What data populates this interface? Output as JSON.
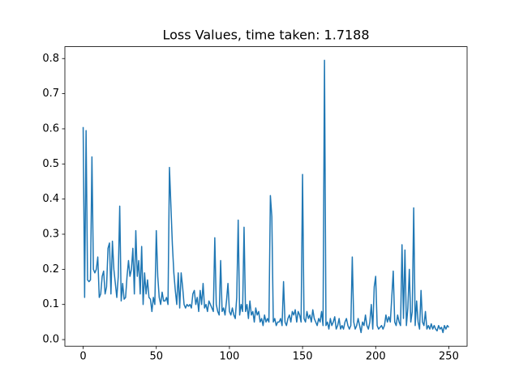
{
  "chart_data": {
    "type": "line",
    "title": "Loss Values, time taken: 1.7188",
    "color": "#1f77b4",
    "x": [
      0,
      1,
      2,
      3,
      4,
      5,
      6,
      7,
      8,
      9,
      10,
      11,
      12,
      13,
      14,
      15,
      16,
      17,
      18,
      19,
      20,
      21,
      22,
      23,
      24,
      25,
      26,
      27,
      28,
      29,
      30,
      31,
      32,
      33,
      34,
      35,
      36,
      37,
      38,
      39,
      40,
      41,
      42,
      43,
      44,
      45,
      46,
      47,
      48,
      49,
      50,
      51,
      52,
      53,
      54,
      55,
      56,
      57,
      58,
      59,
      60,
      61,
      62,
      63,
      64,
      65,
      66,
      67,
      68,
      69,
      70,
      71,
      72,
      73,
      74,
      75,
      76,
      77,
      78,
      79,
      80,
      81,
      82,
      83,
      84,
      85,
      86,
      87,
      88,
      89,
      90,
      91,
      92,
      93,
      94,
      95,
      96,
      97,
      98,
      99,
      100,
      101,
      102,
      103,
      104,
      105,
      106,
      107,
      108,
      109,
      110,
      111,
      112,
      113,
      114,
      115,
      116,
      117,
      118,
      119,
      120,
      121,
      122,
      123,
      124,
      125,
      126,
      127,
      128,
      129,
      130,
      131,
      132,
      133,
      134,
      135,
      136,
      137,
      138,
      139,
      140,
      141,
      142,
      143,
      144,
      145,
      146,
      147,
      148,
      149,
      150,
      151,
      152,
      153,
      154,
      155,
      156,
      157,
      158,
      159,
      160,
      161,
      162,
      163,
      164,
      165,
      166,
      167,
      168,
      169,
      170,
      171,
      172,
      173,
      174,
      175,
      176,
      177,
      178,
      179,
      180,
      181,
      182,
      183,
      184,
      185,
      186,
      187,
      188,
      189,
      190,
      191,
      192,
      193,
      194,
      195,
      196,
      197,
      198,
      199,
      200,
      201,
      202,
      203,
      204,
      205,
      206,
      207,
      208,
      209,
      210,
      211,
      212,
      213,
      214,
      215,
      216,
      217,
      218,
      219,
      220,
      221,
      222,
      223,
      224,
      225,
      226,
      227,
      228,
      229,
      230,
      231,
      232,
      233,
      234,
      235,
      236,
      237,
      238,
      239,
      240,
      241,
      242,
      243,
      244,
      245,
      246,
      247,
      248,
      249,
      250
    ],
    "values": [
      0.605,
      0.12,
      0.595,
      0.17,
      0.165,
      0.17,
      0.52,
      0.2,
      0.19,
      0.2,
      0.235,
      0.12,
      0.13,
      0.18,
      0.195,
      0.13,
      0.15,
      0.26,
      0.275,
      0.13,
      0.28,
      0.2,
      0.16,
      0.12,
      0.18,
      0.38,
      0.11,
      0.16,
      0.115,
      0.12,
      0.18,
      0.225,
      0.18,
      0.2,
      0.26,
      0.13,
      0.31,
      0.18,
      0.225,
      0.13,
      0.265,
      0.1,
      0.19,
      0.13,
      0.17,
      0.12,
      0.115,
      0.08,
      0.12,
      0.1,
      0.31,
      0.18,
      0.12,
      0.1,
      0.135,
      0.11,
      0.11,
      0.12,
      0.1,
      0.49,
      0.38,
      0.27,
      0.19,
      0.14,
      0.1,
      0.19,
      0.09,
      0.19,
      0.15,
      0.1,
      0.09,
      0.1,
      0.095,
      0.1,
      0.09,
      0.13,
      0.14,
      0.1,
      0.12,
      0.08,
      0.14,
      0.1,
      0.16,
      0.09,
      0.1,
      0.08,
      0.11,
      0.1,
      0.09,
      0.08,
      0.29,
      0.1,
      0.08,
      0.07,
      0.225,
      0.08,
      0.09,
      0.07,
      0.11,
      0.16,
      0.08,
      0.07,
      0.09,
      0.07,
      0.06,
      0.12,
      0.34,
      0.07,
      0.1,
      0.08,
      0.32,
      0.08,
      0.1,
      0.06,
      0.11,
      0.07,
      0.08,
      0.05,
      0.09,
      0.07,
      0.08,
      0.05,
      0.06,
      0.04,
      0.07,
      0.05,
      0.06,
      0.05,
      0.41,
      0.35,
      0.05,
      0.06,
      0.04,
      0.05,
      0.05,
      0.06,
      0.04,
      0.165,
      0.05,
      0.04,
      0.06,
      0.07,
      0.05,
      0.08,
      0.07,
      0.085,
      0.05,
      0.08,
      0.07,
      0.05,
      0.47,
      0.06,
      0.05,
      0.08,
      0.06,
      0.07,
      0.05,
      0.085,
      0.06,
      0.05,
      0.04,
      0.06,
      0.05,
      0.08,
      0.04,
      0.795,
      0.04,
      0.05,
      0.03,
      0.06,
      0.04,
      0.05,
      0.065,
      0.03,
      0.04,
      0.06,
      0.03,
      0.04,
      0.03,
      0.05,
      0.06,
      0.04,
      0.03,
      0.04,
      0.235,
      0.05,
      0.03,
      0.04,
      0.06,
      0.04,
      0.02,
      0.05,
      0.04,
      0.07,
      0.04,
      0.03,
      0.05,
      0.1,
      0.03,
      0.15,
      0.18,
      0.04,
      0.03,
      0.035,
      0.04,
      0.03,
      0.04,
      0.07,
      0.05,
      0.065,
      0.05,
      0.12,
      0.195,
      0.05,
      0.04,
      0.07,
      0.05,
      0.04,
      0.27,
      0.06,
      0.255,
      0.04,
      0.09,
      0.2,
      0.05,
      0.08,
      0.375,
      0.04,
      0.11,
      0.05,
      0.03,
      0.14,
      0.05,
      0.04,
      0.08,
      0.03,
      0.04,
      0.03,
      0.045,
      0.03,
      0.04,
      0.03,
      0.025,
      0.04,
      0.03,
      0.035,
      0.02,
      0.04,
      0.03,
      0.04,
      0.035
    ],
    "xlim": [
      -12.5,
      262.5
    ],
    "xticks": [
      0,
      50,
      100,
      150,
      200,
      250
    ],
    "ylim": [
      -0.0188,
      0.8338
    ],
    "yticks": [
      {
        "value": 0,
        "label": "0.0"
      },
      0.1,
      0.2,
      0.3,
      0.4,
      0.5,
      0.6,
      0.7,
      0.8
    ]
  }
}
